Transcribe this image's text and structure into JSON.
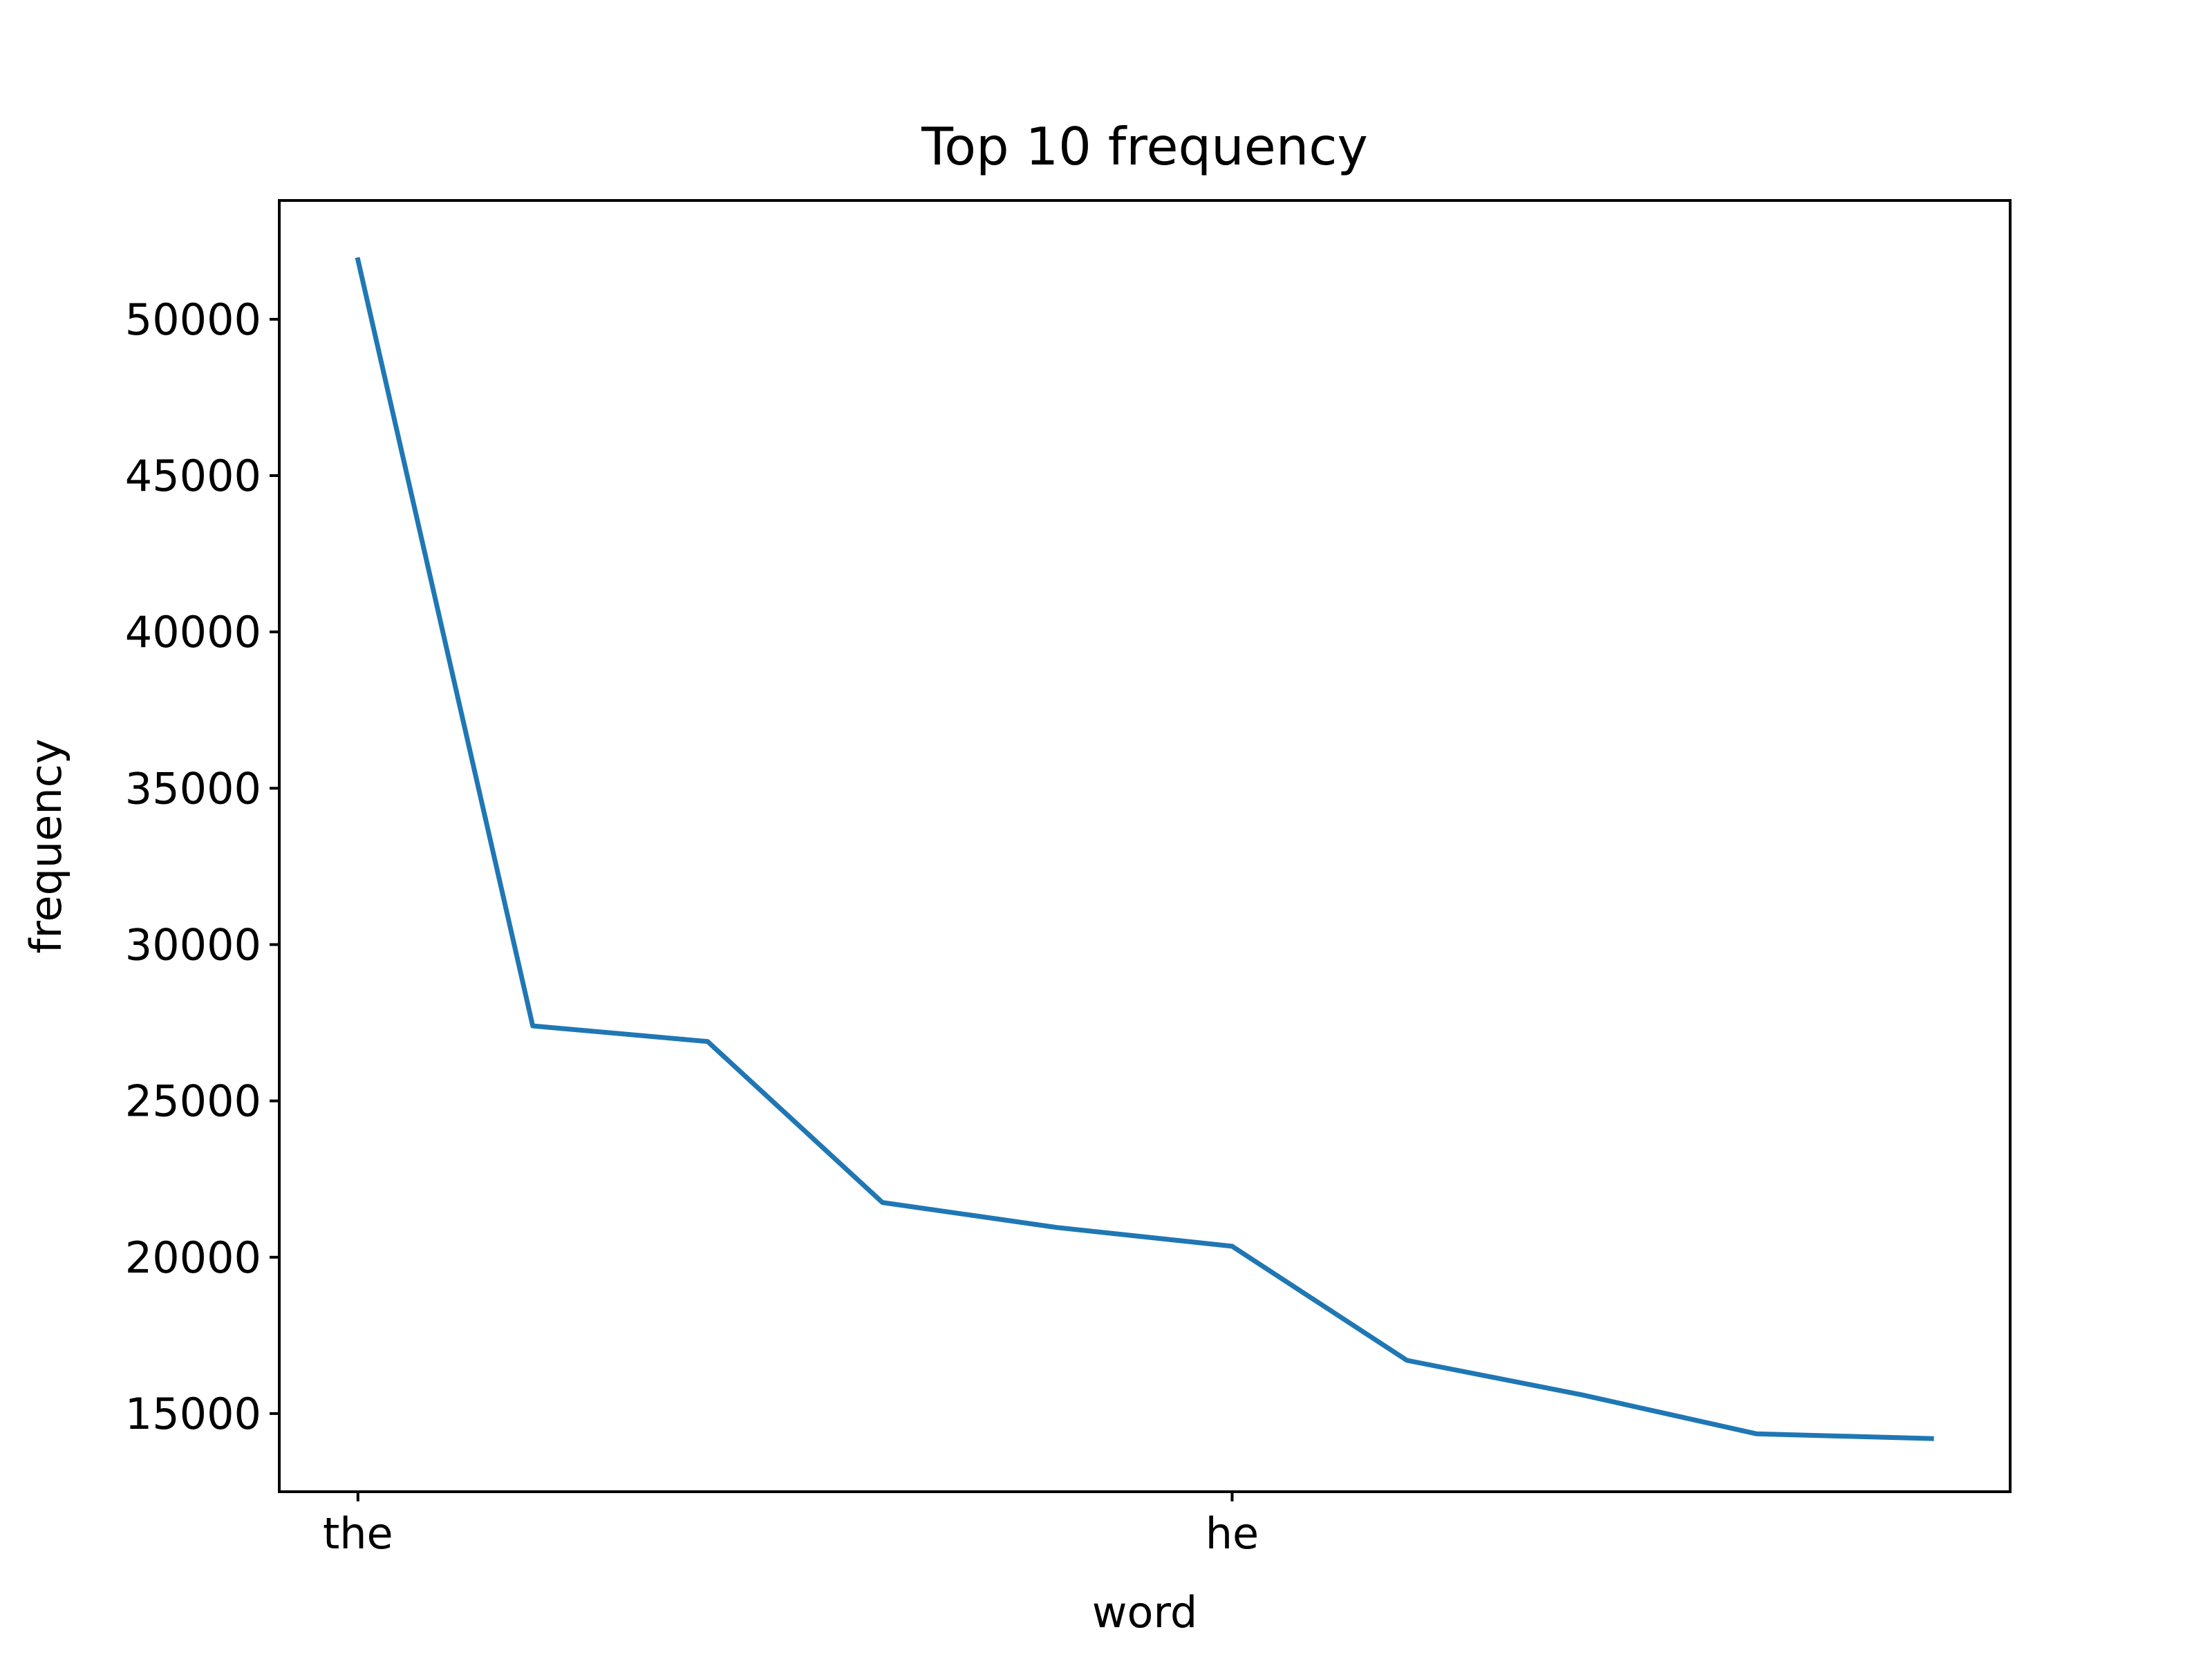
{
  "chart_data": {
    "type": "line",
    "title": "Top 10 frequency",
    "xlabel": "word",
    "ylabel": "frequency",
    "x": [
      0,
      1,
      2,
      3,
      4,
      5,
      6,
      7,
      8,
      9
    ],
    "xtick_positions": [
      0,
      5
    ],
    "xtick_labels": [
      "the",
      "he"
    ],
    "series": [
      {
        "values": [
          51900,
          27400,
          26900,
          21750,
          20950,
          20350,
          16700,
          15600,
          14350,
          14200
        ],
        "color": "#1f77b4"
      }
    ],
    "xlim": [
      -0.45,
      9.45
    ],
    "ylim": [
      12500,
      53800
    ],
    "yticks": [
      15000,
      20000,
      25000,
      30000,
      35000,
      40000,
      45000,
      50000
    ],
    "grid": false
  }
}
